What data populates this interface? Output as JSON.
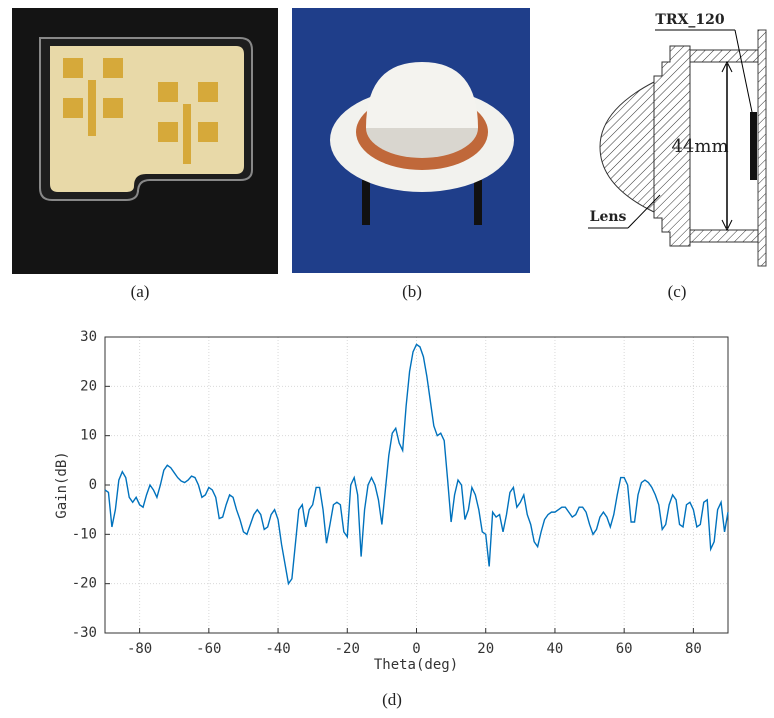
{
  "panels": {
    "a": {
      "caption": "(a)"
    },
    "b": {
      "caption": "(b)"
    },
    "c": {
      "caption": "(c)",
      "labels": [
        "TRX_120",
        "44mm",
        "Lens"
      ]
    },
    "d": {
      "caption": "(d)"
    }
  },
  "chart_data": {
    "type": "line",
    "xlabel": "Theta(deg)",
    "ylabel": "Gain(dB)",
    "xlim": [
      -90,
      90
    ],
    "ylim": [
      -30,
      30
    ],
    "xticks": [
      -80,
      -60,
      -40,
      -20,
      0,
      20,
      40,
      60,
      80
    ],
    "yticks": [
      -30,
      -20,
      -10,
      0,
      10,
      20,
      30
    ],
    "grid": true,
    "x": [
      -90,
      -89,
      -88,
      -87,
      -86,
      -85,
      -84,
      -83,
      -82,
      -81,
      -80,
      -79,
      -78,
      -77,
      -76,
      -75,
      -74,
      -73,
      -72,
      -71,
      -70,
      -69,
      -68,
      -67,
      -66,
      -65,
      -64,
      -63,
      -62,
      -61,
      -60,
      -59,
      -58,
      -57,
      -56,
      -55,
      -54,
      -53,
      -52,
      -51,
      -50,
      -49,
      -48,
      -47,
      -46,
      -45,
      -44,
      -43,
      -42,
      -41,
      -40,
      -39,
      -38,
      -37,
      -36,
      -35,
      -34,
      -33,
      -32,
      -31,
      -30,
      -29,
      -28,
      -27,
      -26,
      -25,
      -24,
      -23,
      -22,
      -21,
      -20,
      -19,
      -18,
      -17,
      -16,
      -15,
      -14,
      -13,
      -12,
      -11,
      -10,
      -9,
      -8,
      -7,
      -6,
      -5,
      -4,
      -3,
      -2,
      -1,
      0,
      1,
      2,
      3,
      4,
      5,
      6,
      7,
      8,
      9,
      10,
      11,
      12,
      13,
      14,
      15,
      16,
      17,
      18,
      19,
      20,
      21,
      22,
      23,
      24,
      25,
      26,
      27,
      28,
      29,
      30,
      31,
      32,
      33,
      34,
      35,
      36,
      37,
      38,
      39,
      40,
      41,
      42,
      43,
      44,
      45,
      46,
      47,
      48,
      49,
      50,
      51,
      52,
      53,
      54,
      55,
      56,
      57,
      58,
      59,
      60,
      61,
      62,
      63,
      64,
      65,
      66,
      67,
      68,
      69,
      70,
      71,
      72,
      73,
      74,
      75,
      76,
      77,
      78,
      79,
      80,
      81,
      82,
      83,
      84,
      85,
      86,
      87,
      88,
      89,
      90
    ],
    "series": [
      {
        "color": "#0072bd",
        "values": [
          -1,
          -1.5,
          -8.5,
          -5,
          1,
          2.7,
          1.5,
          -2.5,
          -3.5,
          -2.5,
          -4,
          -4.5,
          -2,
          0,
          -1,
          -2.5,
          0,
          3,
          4,
          3.5,
          2.5,
          1.5,
          0.8,
          0.5,
          1,
          1.8,
          1.5,
          0,
          -2.5,
          -2,
          -0.5,
          -1,
          -2.5,
          -6.8,
          -6.5,
          -4,
          -2,
          -2.5,
          -5,
          -7,
          -9.5,
          -10,
          -8,
          -6,
          -5,
          -6,
          -9,
          -8.5,
          -6,
          -5,
          -7,
          -12,
          -16,
          -20,
          -19,
          -12,
          -5,
          -4,
          -8.5,
          -5,
          -4,
          -0.5,
          -0.5,
          -5,
          -11.8,
          -8,
          -4,
          -3.5,
          -4,
          -9.5,
          -10.5,
          0,
          1.5,
          -2,
          -14.5,
          -5,
          0,
          1.5,
          0,
          -3,
          -8,
          -1,
          6,
          10.5,
          11.5,
          8.5,
          7,
          16,
          23,
          27,
          28.5,
          28,
          26,
          22,
          17,
          12,
          10,
          10.5,
          9,
          1,
          -7.5,
          -2,
          1,
          0,
          -7,
          -5,
          -0.5,
          -2,
          -5,
          -9.5,
          -10,
          -16.5,
          -5.5,
          -6.5,
          -6,
          -9.5,
          -6,
          -1.5,
          -0.5,
          -4.5,
          -3.5,
          -2,
          -6,
          -8,
          -11.5,
          -12.5,
          -9.5,
          -7,
          -6,
          -5.5,
          -5.5,
          -5,
          -4.5,
          -4.5,
          -5.5,
          -6.5,
          -6,
          -4.5,
          -4.5,
          -5.5,
          -8,
          -10,
          -9,
          -6.5,
          -5.5,
          -6.5,
          -8.5,
          -6,
          -2,
          1.5,
          1.5,
          0,
          -7.5,
          -7.5,
          -2,
          0.5,
          1,
          0.5,
          -0.5,
          -2,
          -4,
          -9,
          -8,
          -4,
          -2,
          -3,
          -8,
          -8.5,
          -4,
          -3.5,
          -5,
          -8.5,
          -8,
          -3.5,
          -3,
          -13,
          -11.5,
          -5,
          -3.5,
          -9.5,
          -5.5
        ]
      }
    ]
  }
}
